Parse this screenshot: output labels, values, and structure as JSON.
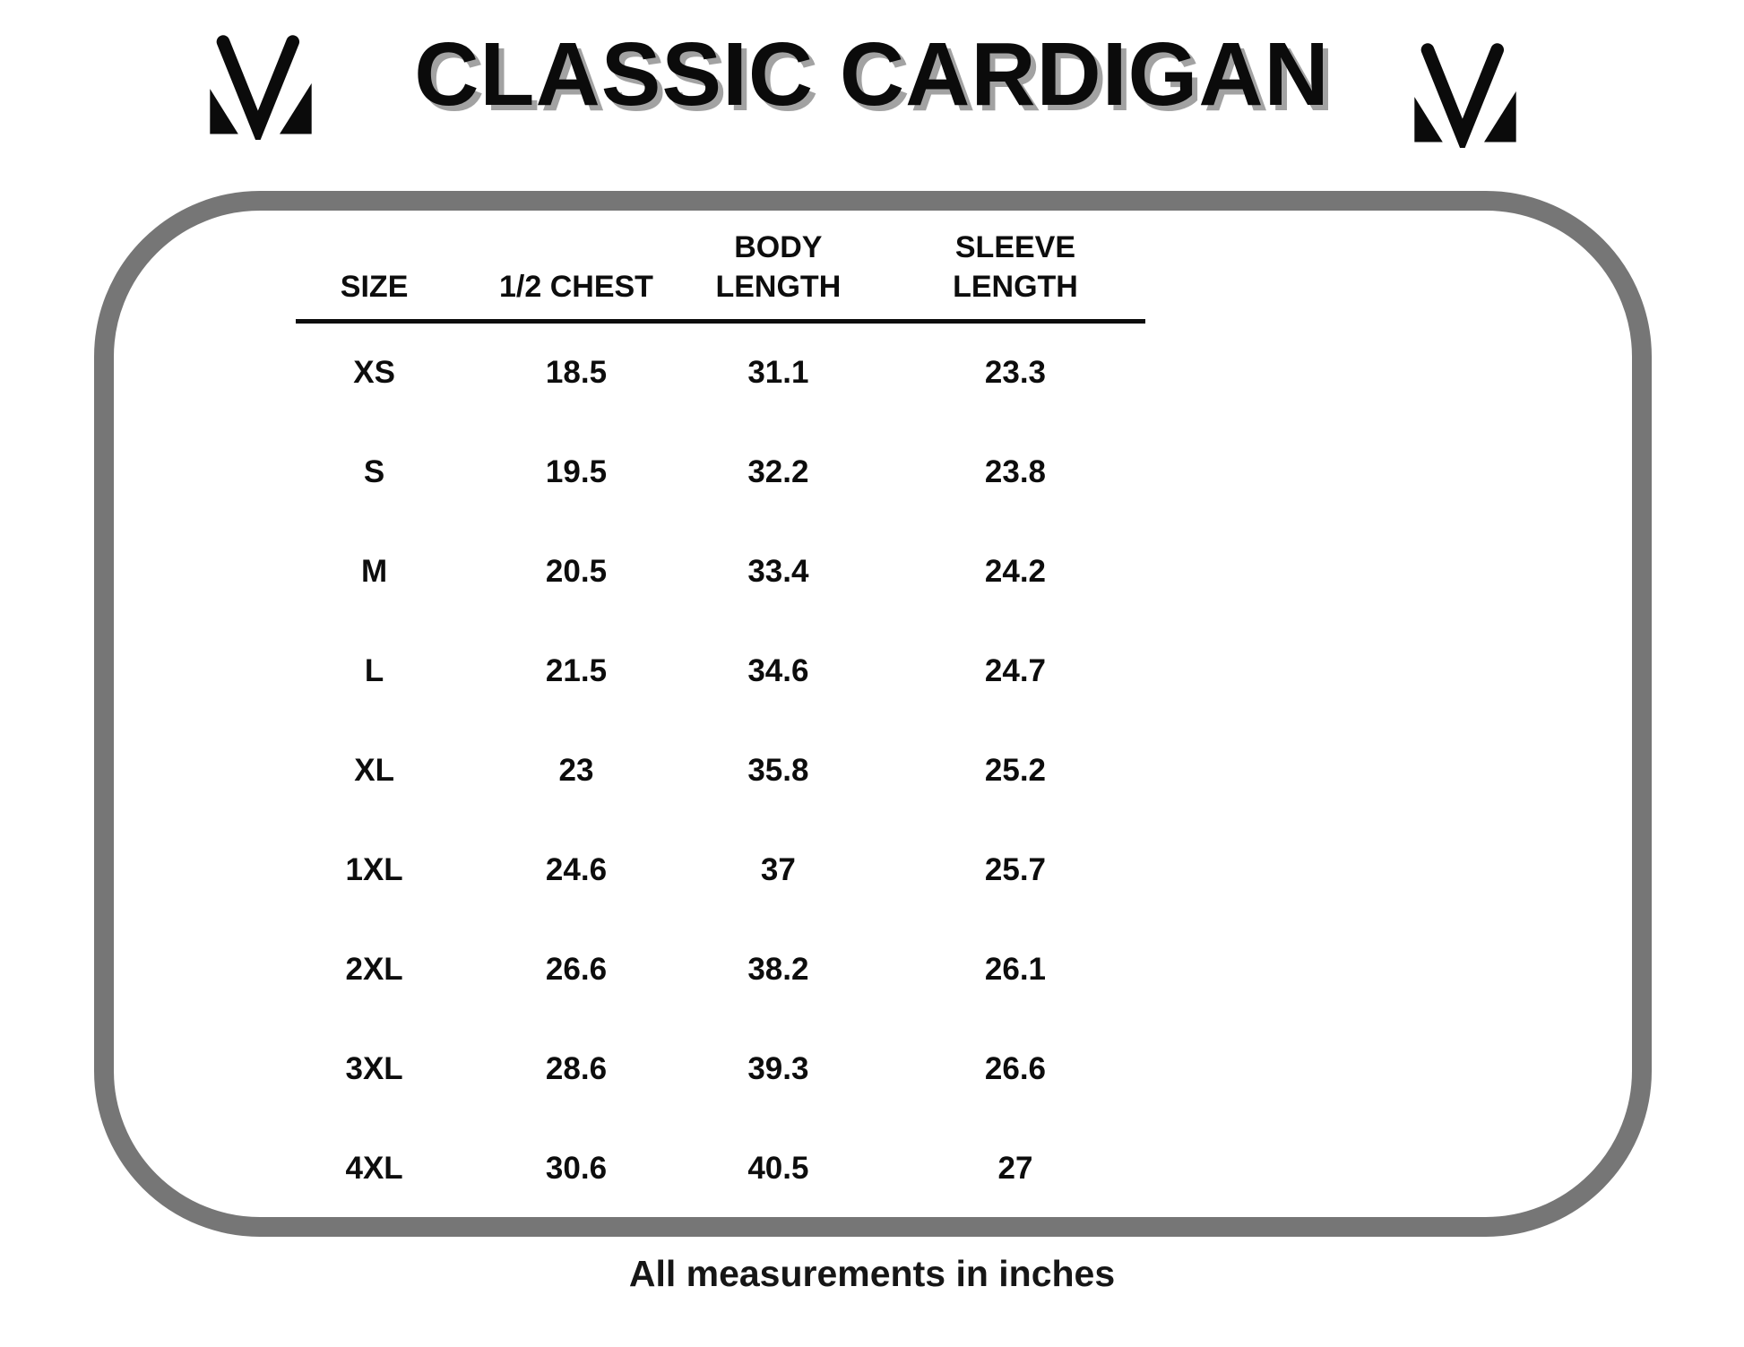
{
  "header": {
    "title": "CLASSIC CARDIGAN",
    "left_logo_icon": "mv-monogram-icon",
    "right_logo_icon": "mv-monogram-icon"
  },
  "table": {
    "headers": [
      "SIZE",
      "1/2 CHEST",
      "BODY\nLENGTH",
      "SLEEVE\nLENGTH"
    ],
    "rows": [
      [
        "XS",
        "18.5",
        "31.1",
        "23.3"
      ],
      [
        "S",
        "19.5",
        "32.2",
        "23.8"
      ],
      [
        "M",
        "20.5",
        "33.4",
        "24.2"
      ],
      [
        "L",
        "21.5",
        "34.6",
        "24.7"
      ],
      [
        "XL",
        "23",
        "35.8",
        "25.2"
      ],
      [
        "1XL",
        "24.6",
        "37",
        "25.7"
      ],
      [
        "2XL",
        "26.6",
        "38.2",
        "26.1"
      ],
      [
        "3XL",
        "28.6",
        "39.3",
        "26.6"
      ],
      [
        "4XL",
        "30.6",
        "40.5",
        "27"
      ]
    ]
  },
  "footer": {
    "note": "All measurements in inches"
  },
  "colors": {
    "frame_gray": "#767676",
    "text_black": "#0d0d0d",
    "title_shadow_gray": "#a2a2a2"
  }
}
